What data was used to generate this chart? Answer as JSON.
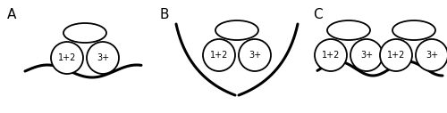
{
  "background": "#ffffff",
  "panel_labels": [
    "A",
    "B",
    "C"
  ],
  "oval_labels_left": "1+2",
  "oval_labels_right": "3+",
  "line_color": "#000000",
  "circle_facecolor": "#ffffff",
  "circle_edgecolor": "#000000",
  "lw": 1.3,
  "label_fontsize": 11,
  "text_fontsize": 7
}
